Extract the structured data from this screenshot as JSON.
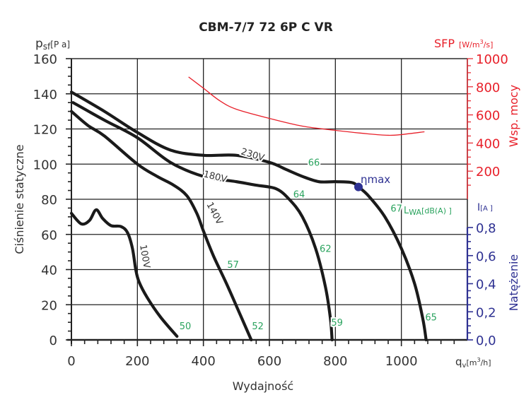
{
  "chart_data": {
    "type": "line",
    "title": "CBM-7/7 72 6P C VR",
    "xlabel": "Wydajność",
    "x_unit_label": "q",
    "x_unit_sub": "v",
    "x_unit_rest": "[m",
    "x_unit_sup": "3",
    "x_unit_end": "/h]",
    "ylabel": "Ciśnienie statyczne",
    "y_unit_label": "p",
    "y_unit_sub": "sf",
    "y_unit_rest": "[P a]",
    "xlim": [
      0,
      1200
    ],
    "ylim": [
      0,
      160
    ],
    "x_ticks": [
      "0",
      "200",
      "400",
      "600",
      "800",
      "1000"
    ],
    "y_ticks": [
      "0",
      "20",
      "40",
      "60",
      "80",
      "100",
      "120",
      "140",
      "160"
    ],
    "grid": true,
    "sfp_axis": {
      "label": "SFP",
      "unit_prefix": "[W/m",
      "unit_sup": "3",
      "unit_suffix": "/s]",
      "title": "Wsp. mocy",
      "ylim": [
        0,
        1000
      ],
      "ticks": [
        "200",
        "400",
        "600",
        "800",
        "1000"
      ],
      "color": "#e8202a"
    },
    "current_axis": {
      "label": "I",
      "unit": "[A ]",
      "title": "Natężenie",
      "ylim": [
        0,
        0.8
      ],
      "ticks": [
        "0,0",
        "0,2",
        "0,4",
        "0,6",
        "0,8"
      ],
      "color": "#2e3192"
    },
    "series": [
      {
        "name": "230V",
        "label_value": "230V",
        "x": [
          0,
          100,
          200,
          300,
          400,
          500,
          600,
          650,
          700,
          750,
          800,
          850,
          870,
          900,
          950,
          1000,
          1040,
          1065,
          1075
        ],
        "y": [
          141,
          130,
          118,
          108,
          105,
          105,
          101,
          97,
          93,
          90,
          90,
          89.5,
          87,
          82,
          70,
          52,
          32,
          12,
          0
        ]
      },
      {
        "name": "180V",
        "label_value": "180V",
        "x": [
          5,
          100,
          200,
          300,
          400,
          500,
          560,
          620,
          660,
          700,
          740,
          770,
          785,
          790
        ],
        "y": [
          135,
          125,
          115,
          101,
          93,
          90,
          88,
          86,
          80,
          70,
          52,
          30,
          12,
          0
        ]
      },
      {
        "name": "140V",
        "label_value": "140V",
        "x": [
          0,
          50,
          100,
          200,
          260,
          310,
          350,
          380,
          400,
          430,
          470,
          510,
          545
        ],
        "y": [
          130,
          122,
          116,
          100,
          93,
          88,
          82,
          72,
          62,
          48,
          32,
          15,
          0
        ]
      },
      {
        "name": "100V",
        "label_value": "100V",
        "x": [
          0,
          30,
          55,
          75,
          95,
          120,
          150,
          170,
          185,
          195,
          205,
          230,
          270,
          320
        ],
        "y": [
          72,
          66,
          68,
          74,
          69,
          65,
          64.5,
          61,
          52,
          40,
          33,
          24,
          13,
          2
        ]
      }
    ],
    "sfp_series": {
      "name": "SFP",
      "x": [
        355,
        400,
        450,
        500,
        600,
        700,
        800,
        900,
        960,
        1000,
        1070
      ],
      "y": [
        870,
        790,
        700,
        640,
        575,
        520,
        490,
        465,
        455,
        460,
        480
      ]
    },
    "eta_max": {
      "label": "ηmax",
      "x": 870,
      "y": 87,
      "color": "#2e3192"
    },
    "noise_labels": {
      "unit": "[dB(A) ]",
      "prefix_main": "L",
      "prefix_sub": "WA",
      "color": "#2aa35e",
      "points": [
        {
          "text": "66",
          "x": 735,
          "y": 99
        },
        {
          "text": "67",
          "x": 985,
          "y": 73
        },
        {
          "text": "64",
          "x": 690,
          "y": 81
        },
        {
          "text": "62",
          "x": 770,
          "y": 50
        },
        {
          "text": "57",
          "x": 490,
          "y": 41
        },
        {
          "text": "50",
          "x": 345,
          "y": 6
        },
        {
          "text": "52",
          "x": 565,
          "y": 6
        },
        {
          "text": "59",
          "x": 805,
          "y": 8
        },
        {
          "text": "65",
          "x": 1090,
          "y": 11
        }
      ]
    }
  }
}
